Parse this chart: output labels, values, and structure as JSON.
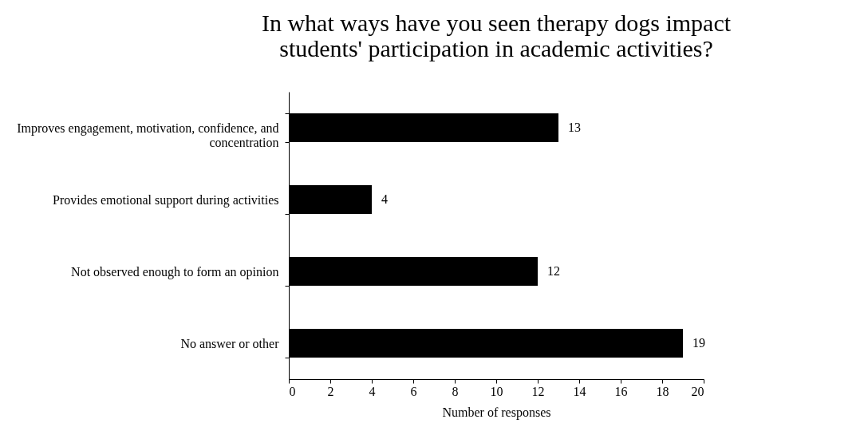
{
  "chart_data": {
    "type": "bar",
    "orientation": "horizontal",
    "title": "In what ways have you seen therapy dogs impact students' participation in academic activities?",
    "categories": [
      "Improves engagement, motivation, confidence, and concentration",
      "Provides emotional support during activities",
      "Not observed enough to form an opinion",
      "No answer or other"
    ],
    "values": [
      13,
      4,
      12,
      19
    ],
    "color": "#000000",
    "xlabel": "Number of responses",
    "xlim": [
      0,
      20
    ],
    "xticks": [
      0,
      2,
      4,
      6,
      8,
      10,
      12,
      14,
      16,
      18,
      20
    ],
    "grid": false,
    "data_labels": true
  }
}
